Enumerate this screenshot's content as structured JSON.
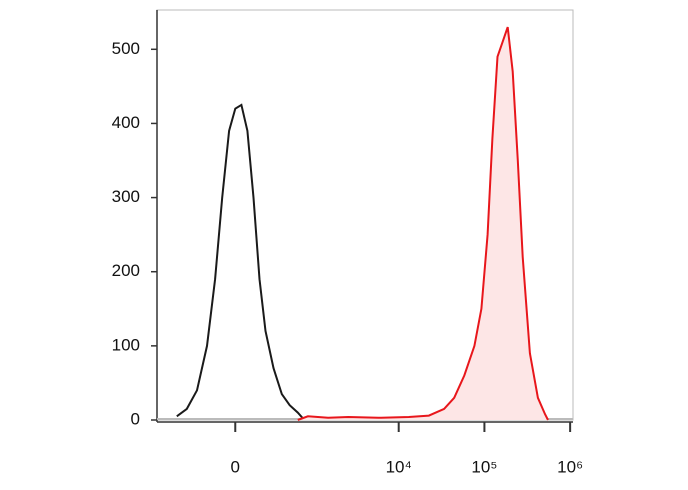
{
  "chart_data": {
    "type": "line",
    "xscale": "biexponential",
    "xlim": [
      -1000,
      1080000
    ],
    "xticks": [
      {
        "value": 0,
        "label": "0"
      },
      {
        "value": 10000,
        "label": "10⁴"
      },
      {
        "value": 100000,
        "label": "10⁵"
      },
      {
        "value": 1000000,
        "label": "10⁶"
      }
    ],
    "ylim": [
      0,
      553
    ],
    "yticks": [
      0,
      100,
      200,
      300,
      400,
      500
    ],
    "series": [
      {
        "color": "#1a1a1a",
        "fill": null,
        "x": [
          -570,
          -422,
          -302,
          -207,
          -141,
          -89,
          -41,
          0,
          41,
          82,
          126,
          173,
          224,
          302,
          397,
          506,
          642,
          744
        ],
        "values": [
          5,
          15,
          40,
          100,
          190,
          300,
          390,
          420,
          425,
          390,
          300,
          190,
          120,
          70,
          35,
          20,
          10,
          2
        ]
      },
      {
        "color": "#e8161b",
        "fill": "#fde6e6",
        "x": [
          642,
          856,
          1490,
          2575,
          5800,
          13100,
          22500,
          33900,
          44400,
          58300,
          76400,
          92300,
          109000,
          124000,
          142000,
          163000,
          187000,
          214000,
          245000,
          280000,
          339000,
          421000,
          509000,
          552000
        ],
        "values": [
          0,
          5,
          3,
          4,
          3,
          4,
          6,
          15,
          30,
          60,
          100,
          150,
          250,
          380,
          490,
          510,
          530,
          470,
          350,
          220,
          90,
          30,
          8,
          0
        ]
      }
    ]
  }
}
